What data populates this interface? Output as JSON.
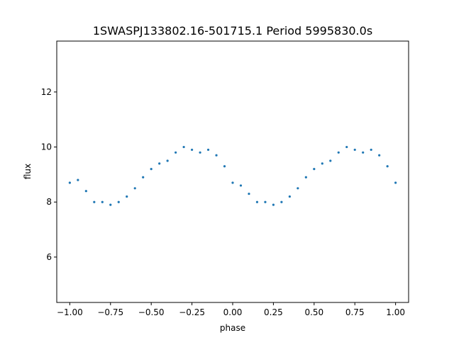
{
  "chart_data": {
    "type": "scatter",
    "title": "1SWASPJ133802.16-501715.1 Period 5995830.0s",
    "xlabel": "phase",
    "ylabel": "flux",
    "xlim": [
      -1.08,
      1.08
    ],
    "ylim": [
      4.35,
      13.85
    ],
    "xticks": [
      -1.0,
      -0.75,
      -0.5,
      -0.25,
      0.0,
      0.25,
      0.5,
      0.75,
      1.0
    ],
    "xtick_labels": [
      "−1.00",
      "−0.75",
      "−0.50",
      "−0.25",
      "0.00",
      "0.25",
      "0.50",
      "0.75",
      "1.00"
    ],
    "yticks": [
      6,
      8,
      10,
      12
    ],
    "ytick_labels": [
      "6",
      "8",
      "10",
      "12"
    ],
    "grid": false,
    "point_color": "#1f77b4",
    "series": [
      {
        "x": [
          -1.0,
          -0.95,
          -0.9,
          -0.85,
          -0.8,
          -0.75,
          -0.7,
          -0.65,
          -0.6,
          -0.55,
          -0.5,
          -0.45,
          -0.4,
          -0.35,
          -0.3,
          -0.25,
          -0.2,
          -0.15,
          -0.1,
          -0.05,
          0.0,
          0.05,
          0.1,
          0.15,
          0.2,
          0.25,
          0.3,
          0.35,
          0.4,
          0.45,
          0.5,
          0.55,
          0.6,
          0.65,
          0.7,
          0.75,
          0.8,
          0.85,
          0.9,
          0.95,
          1.0
        ],
        "y": [
          8.7,
          8.8,
          8.4,
          8.0,
          8.0,
          7.9,
          8.0,
          8.2,
          8.5,
          8.9,
          9.2,
          9.4,
          9.5,
          9.8,
          10.0,
          9.9,
          9.8,
          9.9,
          9.7,
          9.3,
          8.7,
          8.6,
          8.3,
          8.0,
          8.0,
          7.9,
          8.0,
          8.2,
          8.5,
          8.9,
          9.2,
          9.4,
          9.5,
          9.8,
          10.0,
          9.9,
          9.8,
          9.9,
          9.7,
          9.3,
          8.7
        ]
      }
    ]
  }
}
